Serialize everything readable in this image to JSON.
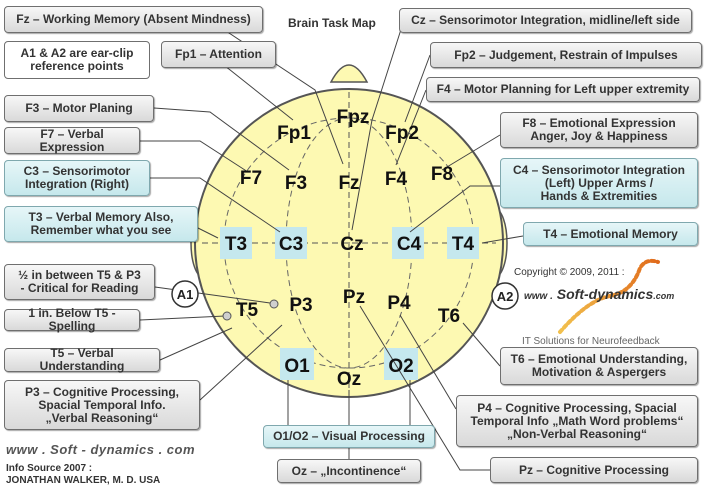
{
  "title": "Brain Task Map",
  "electrodes": [
    {
      "id": "fpz",
      "label": "Fpz"
    },
    {
      "id": "fp1",
      "label": "Fp1"
    },
    {
      "id": "fp2",
      "label": "Fp2"
    },
    {
      "id": "f7",
      "label": "F7"
    },
    {
      "id": "f3",
      "label": "F3"
    },
    {
      "id": "fz",
      "label": "Fz"
    },
    {
      "id": "f4",
      "label": "F4"
    },
    {
      "id": "f8",
      "label": "F8"
    },
    {
      "id": "t3",
      "label": "T3"
    },
    {
      "id": "c3",
      "label": "C3"
    },
    {
      "id": "cz",
      "label": "Cz"
    },
    {
      "id": "c4",
      "label": "C4"
    },
    {
      "id": "t4",
      "label": "T4"
    },
    {
      "id": "t5",
      "label": "T5"
    },
    {
      "id": "p3",
      "label": "P3"
    },
    {
      "id": "pz",
      "label": "Pz"
    },
    {
      "id": "p4",
      "label": "P4"
    },
    {
      "id": "t6",
      "label": "T6"
    },
    {
      "id": "o1",
      "label": "O1"
    },
    {
      "id": "oz",
      "label": "Oz"
    },
    {
      "id": "o2",
      "label": "O2"
    }
  ],
  "references": {
    "a1": "A1",
    "a2": "A2"
  },
  "labels": {
    "fz": "Fz – Working Memory (Absent Mindness)",
    "ear_clip": "A1 & A2 are ear-clip\nreference points",
    "fp1": "Fp1 – Attention",
    "f3": "F3 – Motor Planing",
    "f7": "F7 – Verbal Expression",
    "c3": "C3 – Sensorimotor\nIntegration (Right)",
    "t3": "T3 – Verbal Memory Also,\nRemember what you see",
    "between": "½ in between T5 & P3\n- Critical for Reading",
    "below_t5": "1 in. Below T5 - Spelling",
    "t5": "T5 – Verbal Understanding",
    "p3": "P3 – Cognitive Processing,\nSpacial Temporal Info.\n„Verbal Reasoning“",
    "o1o2": "O1/O2 – Visual Processing",
    "oz": "Oz – „Incontinence“",
    "cz": "Cz – Sensorimotor Integration,  midline/left side",
    "fp2": "Fp2 – Judgement, Restrain of Impulses",
    "f4": "F4 – Motor Planning for Left upper extremity",
    "f8": "F8 – Emotional Expression\nAnger, Joy & Happiness",
    "c4": "C4 – Sensorimotor Integration\n(Left) Upper Arms /\nHands & Extremities",
    "t4": "T4 – Emotional Memory",
    "t6": "T6 – Emotional Understanding,\nMotivation & Aspergers",
    "p4": "P4 – Cognitive Processing, Spacial\nTemporal Info „Math Word problems“\n„Non-Verbal Reasoning“",
    "pz": "Pz – Cognitive Processing"
  },
  "footer": {
    "website": "www . Soft - dynamics . com",
    "source": "Info Source  2007 :\nJONATHAN WALKER, M. D. USA"
  },
  "branding": {
    "copyright": "Copyright © 2009, 2011 :",
    "prefix": "www .",
    "name": "Soft-dynamics",
    "suffix": ".com",
    "tagline": "IT Solutions for Neurofeedback"
  },
  "colors": {
    "head_fill": "#fdf9b2",
    "highlight": "#c5e8ee",
    "outline": "#555555",
    "brand_wave": "#e8a13a"
  }
}
